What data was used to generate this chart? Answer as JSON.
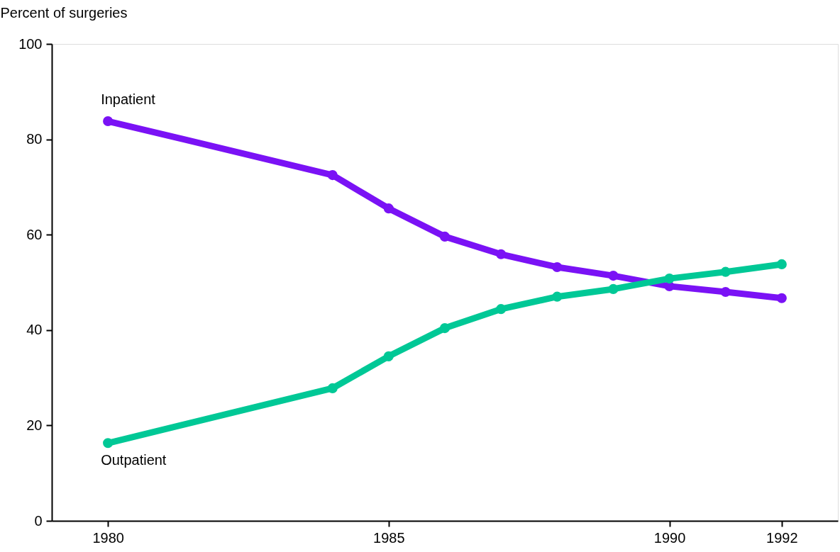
{
  "chart_data": {
    "type": "line",
    "ylabel": "Percent of surgeries",
    "x": [
      1980,
      1984,
      1985,
      1986,
      1987,
      1988,
      1989,
      1990,
      1991,
      1992
    ],
    "xlim": [
      1979,
      1993
    ],
    "xticks": [
      1980,
      1985,
      1990,
      1992
    ],
    "ylim": [
      0,
      100
    ],
    "yticks": [
      0,
      20,
      40,
      60,
      80,
      100
    ],
    "grid": false,
    "legend": false,
    "marker": "circle",
    "line_style": "solid",
    "series": [
      {
        "name": "Inpatient",
        "color": "#7a12f5",
        "values": [
          83.8,
          72.5,
          65.5,
          59.6,
          55.9,
          53.2,
          51.4,
          49.2,
          48.0,
          46.7
        ]
      },
      {
        "name": "Outpatient",
        "color": "#00c896",
        "values": [
          16.3,
          27.8,
          34.5,
          40.4,
          44.4,
          47.0,
          48.6,
          50.8,
          52.2,
          53.8
        ]
      }
    ]
  }
}
